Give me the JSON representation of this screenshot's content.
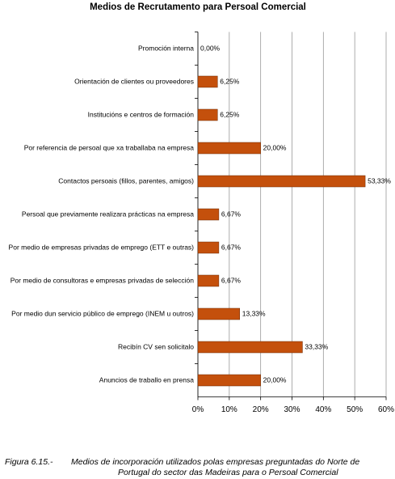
{
  "chart_data": {
    "type": "bar",
    "orientation": "horizontal",
    "title": "Medios de Recrutamento para Persoal Comercial",
    "categories": [
      "Promoción interna",
      "Orientación de clientes ou proveedores",
      "Institucións e centros de formación",
      "Por referencia de persoal que xa traballaba na empresa",
      "Contactos persoais (fillos, parentes, amigos)",
      "Persoal que previamente realizara prácticas na empresa",
      "Por medio de empresas privadas de emprego (ETT e outras)",
      "Por medio  de consultoras e empresas privadas de selección",
      "Por medio dun servicio público de emprego (INEM u outros)",
      "Recibín CV sen solicitalo",
      "Anuncios de traballo en prensa"
    ],
    "values": [
      0,
      6.25,
      6.25,
      20,
      53.33,
      6.67,
      6.67,
      6.67,
      13.33,
      33.33,
      20
    ],
    "value_labels": [
      "0,00%",
      "6,25%",
      "6,25%",
      "20,00%",
      "53,33%",
      "6,67%",
      "6,67%",
      "6,67%",
      "13,33%",
      "33,33%",
      "20,00%"
    ],
    "color": "#c4500c",
    "xlim": [
      0,
      60
    ],
    "xticks": [
      {
        "value": 0,
        "label": "0%"
      },
      {
        "value": 10,
        "label": "10%"
      },
      {
        "value": 20,
        "label": "20%"
      },
      {
        "value": 30,
        "label": "30%"
      },
      {
        "value": 40,
        "label": "40%"
      },
      {
        "value": 50,
        "label": "50%"
      },
      {
        "value": 60,
        "label": "60%"
      }
    ],
    "grid": true
  },
  "caption": {
    "label": "Figura 6.15.-",
    "lines": [
      "Medios de incorporación utilizados polas empresas preguntadas do Norte de",
      "Portugal do sector das Madeiras para o Persoal Comercial"
    ]
  }
}
